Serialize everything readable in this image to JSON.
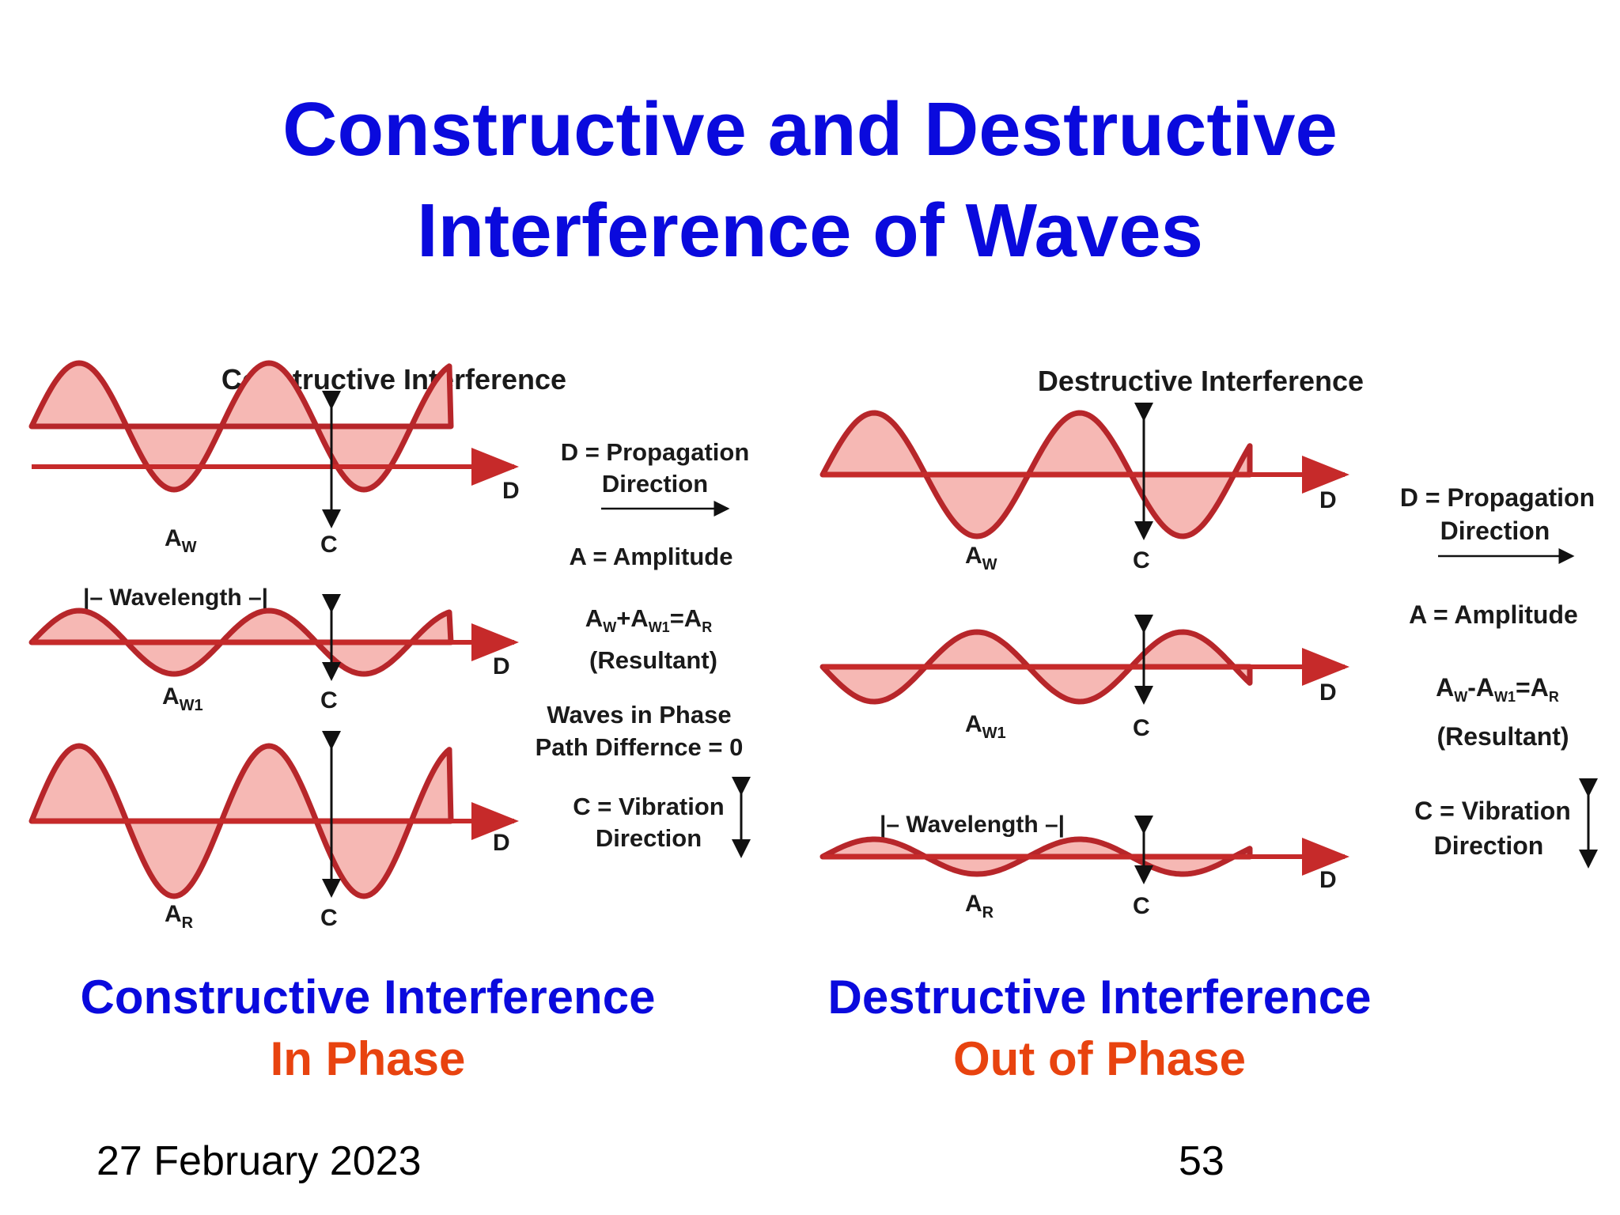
{
  "slide": {
    "title_line1": "Constructive and Destructive",
    "title_line2": "Interference of Waves",
    "date": "27 February 2023",
    "page_number": "53"
  },
  "colors": {
    "title": "#0a0add",
    "caption_blue": "#0a0add",
    "caption_orange": "#e8430f",
    "wave_stroke": "#b7262a",
    "wave_fill": "#f6b8b4",
    "axis": "#c62a2a",
    "text": "#1a1a1a"
  },
  "constructive": {
    "panel_title": "Constructive Interference",
    "wavelength_label": "|– Wavelength –|",
    "wave1": {
      "amplitude_label": "A",
      "amplitude_sub": "W",
      "direction_label": "D",
      "vibration_label": "C"
    },
    "wave2": {
      "amplitude_label": "A",
      "amplitude_sub": "W1",
      "direction_label": "D",
      "vibration_label": "C"
    },
    "resultant": {
      "amplitude_label": "A",
      "amplitude_sub": "R",
      "direction_label": "D",
      "vibration_label": "C"
    },
    "legend": {
      "propagation_line1": "D = Propagation",
      "propagation_line2": "Direction",
      "amplitude": "A = Amplitude",
      "formula_a": "A",
      "formula_w": "W",
      "formula_plus": "+A",
      "formula_w1": "W1",
      "formula_eq": "=A",
      "formula_r": "R",
      "resultant": "(Resultant)",
      "phase_line1": "Waves in Phase",
      "phase_line2": "Path Differnce = 0",
      "vibration_line1": "C = Vibration",
      "vibration_line2": "Direction"
    },
    "caption_line1": "Constructive Interference",
    "caption_line2": "In Phase"
  },
  "destructive": {
    "panel_title": "Destructive Interference",
    "wavelength_label": "|– Wavelength –|",
    "wave1": {
      "amplitude_label": "A",
      "amplitude_sub": "W",
      "direction_label": "D",
      "vibration_label": "C"
    },
    "wave2": {
      "amplitude_label": "A",
      "amplitude_sub": "W1",
      "direction_label": "D",
      "vibration_label": "C"
    },
    "resultant": {
      "amplitude_label": "A",
      "amplitude_sub": "R",
      "direction_label": "D",
      "vibration_label": "C"
    },
    "legend": {
      "propagation_line1": "D = Propagation",
      "propagation_line2": "Direction",
      "amplitude": "A = Amplitude",
      "formula_a": "A",
      "formula_w": "W",
      "formula_minus": "-A",
      "formula_w1": "W1",
      "formula_eq": "=A",
      "formula_r": "R",
      "resultant": "(Resultant)",
      "vibration_line1": "C = Vibration",
      "vibration_line2": "Direction"
    },
    "caption_line1": "Destructive Interference",
    "caption_line2": "Out of Phase"
  }
}
